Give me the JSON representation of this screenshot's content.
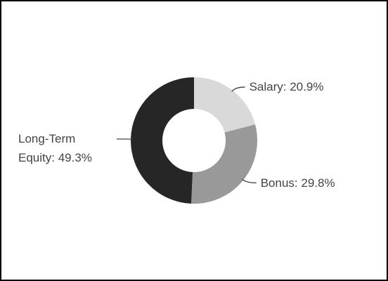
{
  "chart_data": {
    "type": "donut",
    "values": [
      20.9,
      29.8,
      49.3
    ],
    "value_labels": [
      "Salary: 20.9%",
      "Bonus: 29.8%",
      "Long-Term Equity: 49.3%"
    ],
    "colors": [
      "#d9d9d9",
      "#999999",
      "#262626"
    ]
  }
}
